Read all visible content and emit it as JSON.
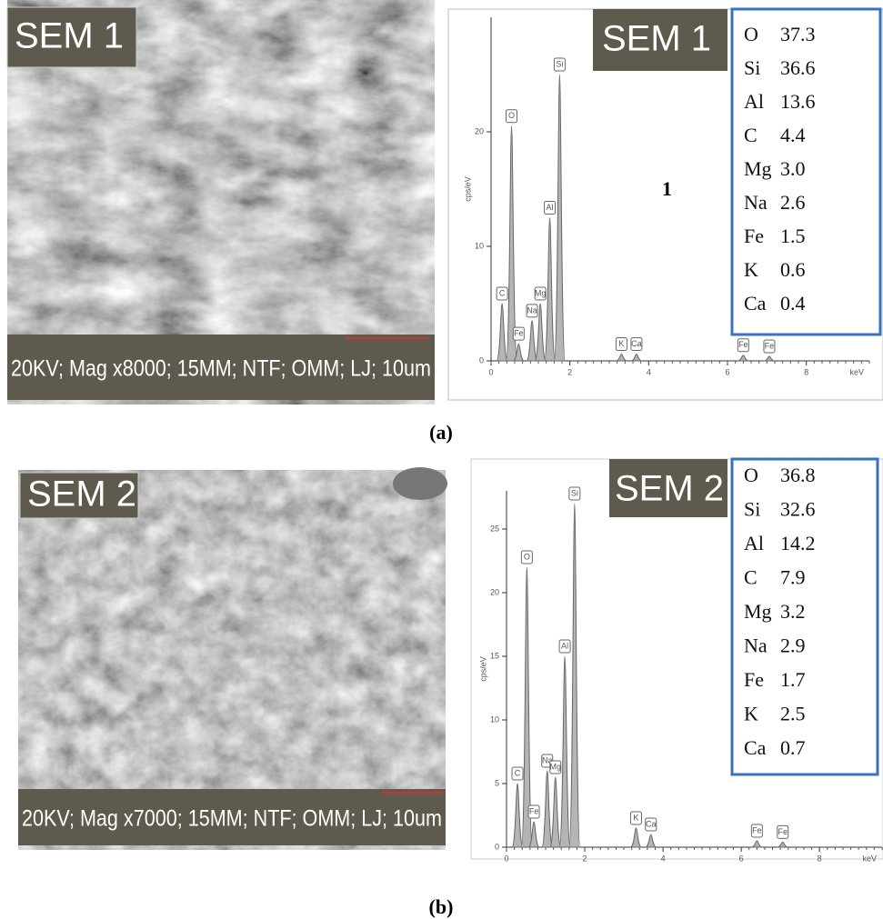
{
  "panels": [
    {
      "label": "(a)",
      "sem": {
        "tag": "SEM 1",
        "caption": "20KV; Mag x8000; 15MM; NTF; OMM; LJ; 10um"
      },
      "eds": {
        "tag": "SEM 1",
        "annotation": "1",
        "x_label": "keV",
        "y_label": "cps/eV",
        "xlim": [
          0,
          9.6
        ],
        "xticks": [
          0,
          2,
          4,
          6,
          8
        ],
        "ylim": [
          0,
          30
        ],
        "yticks": [
          0,
          10,
          20
        ],
        "peaks": [
          {
            "label": "C",
            "x": 0.28,
            "height": 5
          },
          {
            "label": "O",
            "x": 0.52,
            "height": 20.5
          },
          {
            "label": "Fe",
            "x": 0.7,
            "height": 1.5
          },
          {
            "label": "Na",
            "x": 1.04,
            "height": 3.5
          },
          {
            "label": "Mg",
            "x": 1.25,
            "height": 5
          },
          {
            "label": "Al",
            "x": 1.49,
            "height": 12.5
          },
          {
            "label": "Si",
            "x": 1.74,
            "height": 25
          },
          {
            "label": "K",
            "x": 3.31,
            "height": 0.6
          },
          {
            "label": "Ca",
            "x": 3.69,
            "height": 0.6
          },
          {
            "label": "Fe",
            "x": 6.4,
            "height": 0.5
          },
          {
            "label": "Fe",
            "x": 7.06,
            "height": 0.4
          }
        ],
        "composition": [
          {
            "element": "O",
            "value": 37.3
          },
          {
            "element": "Si",
            "value": 36.6
          },
          {
            "element": "Al",
            "value": 13.6
          },
          {
            "element": "C",
            "value": 4.4
          },
          {
            "element": "Mg",
            "value": {
              "value": 3,
              "label": "3.0"
            }
          },
          {
            "element": "Na",
            "value": 2.6
          },
          {
            "element": "Fe",
            "value": 1.5
          },
          {
            "element": "K",
            "value": 0.6
          },
          {
            "element": "Ca",
            "value": 0.4
          }
        ]
      }
    },
    {
      "label": "(b)",
      "sem": {
        "tag": "SEM 2",
        "caption": "20KV; Mag x7000; 15MM; NTF; OMM; LJ; 10um"
      },
      "eds": {
        "tag": "SEM 2",
        "x_label": "keV",
        "y_label": "cps/eV",
        "xlim": [
          0,
          9.6
        ],
        "xticks": [
          0,
          2,
          4,
          6,
          8
        ],
        "ylim": [
          0,
          28
        ],
        "yticks": [
          0,
          5,
          10,
          15,
          20,
          25
        ],
        "peaks": [
          {
            "label": "C",
            "x": 0.28,
            "height": 5
          },
          {
            "label": "O",
            "x": 0.52,
            "height": 22
          },
          {
            "label": "Fe",
            "x": 0.7,
            "height": 2
          },
          {
            "label": "Na",
            "x": 1.04,
            "height": 6
          },
          {
            "label": "Mg",
            "x": 1.25,
            "height": 5.5
          },
          {
            "label": "Al",
            "x": 1.49,
            "height": 15
          },
          {
            "label": "Si",
            "x": 1.74,
            "height": 27
          },
          {
            "label": "K",
            "x": 3.31,
            "height": 1.5
          },
          {
            "label": "Ca",
            "x": 3.69,
            "height": 1
          },
          {
            "label": "Fe",
            "x": 6.4,
            "height": 0.5
          },
          {
            "label": "Fe",
            "x": 7.06,
            "height": 0.4
          }
        ],
        "composition": [
          {
            "element": "O",
            "value": 36.8
          },
          {
            "element": "Si",
            "value": 32.6
          },
          {
            "element": "Al",
            "value": 14.2
          },
          {
            "element": "C",
            "value": 7.9
          },
          {
            "element": "Mg",
            "value": 3.2
          },
          {
            "element": "Na",
            "value": 2.9
          },
          {
            "element": "Fe",
            "value": 1.7
          },
          {
            "element": "K",
            "value": 2.5
          },
          {
            "element": "Ca",
            "value": 0.7
          }
        ]
      }
    }
  ]
}
